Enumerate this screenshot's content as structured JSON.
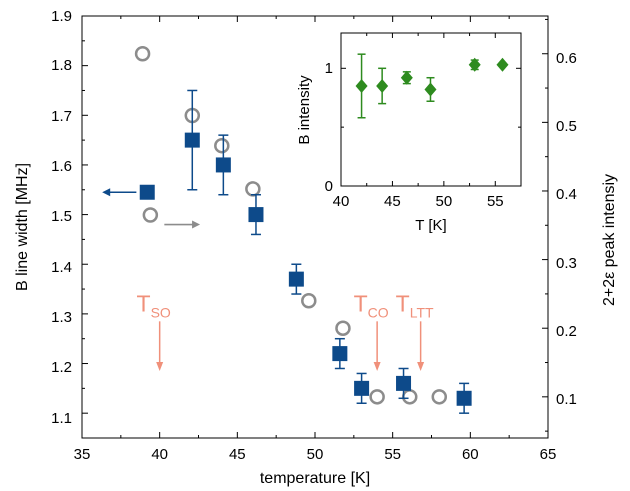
{
  "chart_data": [
    {
      "type": "scatter",
      "xlabel": "temperature [K]",
      "ylabel": "B line width [MHz]",
      "y2label": "2+2ε peak intensiy",
      "xlim": [
        35,
        65
      ],
      "ylim": [
        1.05,
        1.9
      ],
      "y2lim": [
        0.04,
        0.655
      ],
      "x_ticks": [
        "35",
        "40",
        "45",
        "50",
        "55",
        "60",
        "65"
      ],
      "y_ticks": [
        "1.1",
        "1.2",
        "1.3",
        "1.4",
        "1.5",
        "1.6",
        "1.7",
        "1.8",
        "1.9"
      ],
      "y2_ticks": [
        "0.1",
        "0.2",
        "0.3",
        "0.4",
        "0.5",
        "0.6"
      ],
      "grid": false,
      "colors": {
        "linewidth": "#0d4a8a",
        "peak": "#8c8c8c",
        "annotation": "#f0907a",
        "inset": "#2e8b1f"
      },
      "series": [
        {
          "axis": "left",
          "marker": "filled-square",
          "points": [
            {
              "x": 39.2,
              "y": 1.545,
              "err": 0
            },
            {
              "x": 42.1,
              "y": 1.65,
              "err": 0.1
            },
            {
              "x": 44.1,
              "y": 1.6,
              "err": 0.06
            },
            {
              "x": 46.2,
              "y": 1.5,
              "err": 0.04
            },
            {
              "x": 48.8,
              "y": 1.37,
              "err": 0.03
            },
            {
              "x": 51.6,
              "y": 1.22,
              "err": 0.03
            },
            {
              "x": 53.0,
              "y": 1.15,
              "err": 0.03
            },
            {
              "x": 55.7,
              "y": 1.16,
              "err": 0.03
            },
            {
              "x": 59.6,
              "y": 1.13,
              "err": 0.03
            }
          ]
        },
        {
          "axis": "right",
          "marker": "open-circle",
          "points": [
            {
              "x": 38.9,
              "y": 0.6
            },
            {
              "x": 39.4,
              "y": 0.365
            },
            {
              "x": 42.1,
              "y": 0.51
            },
            {
              "x": 44.0,
              "y": 0.466
            },
            {
              "x": 46.0,
              "y": 0.403
            },
            {
              "x": 49.6,
              "y": 0.24
            },
            {
              "x": 51.8,
              "y": 0.2
            },
            {
              "x": 54.0,
              "y": 0.1
            },
            {
              "x": 56.1,
              "y": 0.1
            },
            {
              "x": 58.0,
              "y": 0.1
            }
          ]
        }
      ],
      "annotations": [
        {
          "base": "T",
          "sub": "SO",
          "x": 40.0,
          "arrow_from": 1.285,
          "arrow_to": 1.185
        },
        {
          "base": "T",
          "sub": "CO",
          "x": 54.0,
          "arrow_from": 1.285,
          "arrow_to": 1.185
        },
        {
          "base": "T",
          "sub": "LTT",
          "x": 56.8,
          "arrow_from": 1.285,
          "arrow_to": 1.185
        }
      ],
      "axis_arrows": [
        {
          "series": "linewidth",
          "direction": "left",
          "x_from": 38.5,
          "x_to": 36.3,
          "y": 1.545
        },
        {
          "series": "peak",
          "direction": "right",
          "x_from": 40.3,
          "x_to": 42.6,
          "y": 1.48
        }
      ]
    },
    {
      "type": "scatter",
      "xlabel": "T [K]",
      "ylabel": "B intensity",
      "xlim": [
        40,
        57.5
      ],
      "ylim": [
        0,
        1.3
      ],
      "x_ticks": [
        "40",
        "45",
        "50",
        "55"
      ],
      "y_ticks": [
        "0",
        "1"
      ],
      "marker": "filled-diamond",
      "series": [
        {
          "points": [
            {
              "x": 42.0,
              "y": 0.85,
              "err": 0.27
            },
            {
              "x": 44.0,
              "y": 0.85,
              "err": 0.15
            },
            {
              "x": 46.4,
              "y": 0.92,
              "err": 0.05
            },
            {
              "x": 48.7,
              "y": 0.82,
              "err": 0.1
            },
            {
              "x": 53.0,
              "y": 1.03,
              "err": 0.04
            },
            {
              "x": 55.7,
              "y": 1.03,
              "err": 0
            }
          ]
        }
      ]
    }
  ]
}
